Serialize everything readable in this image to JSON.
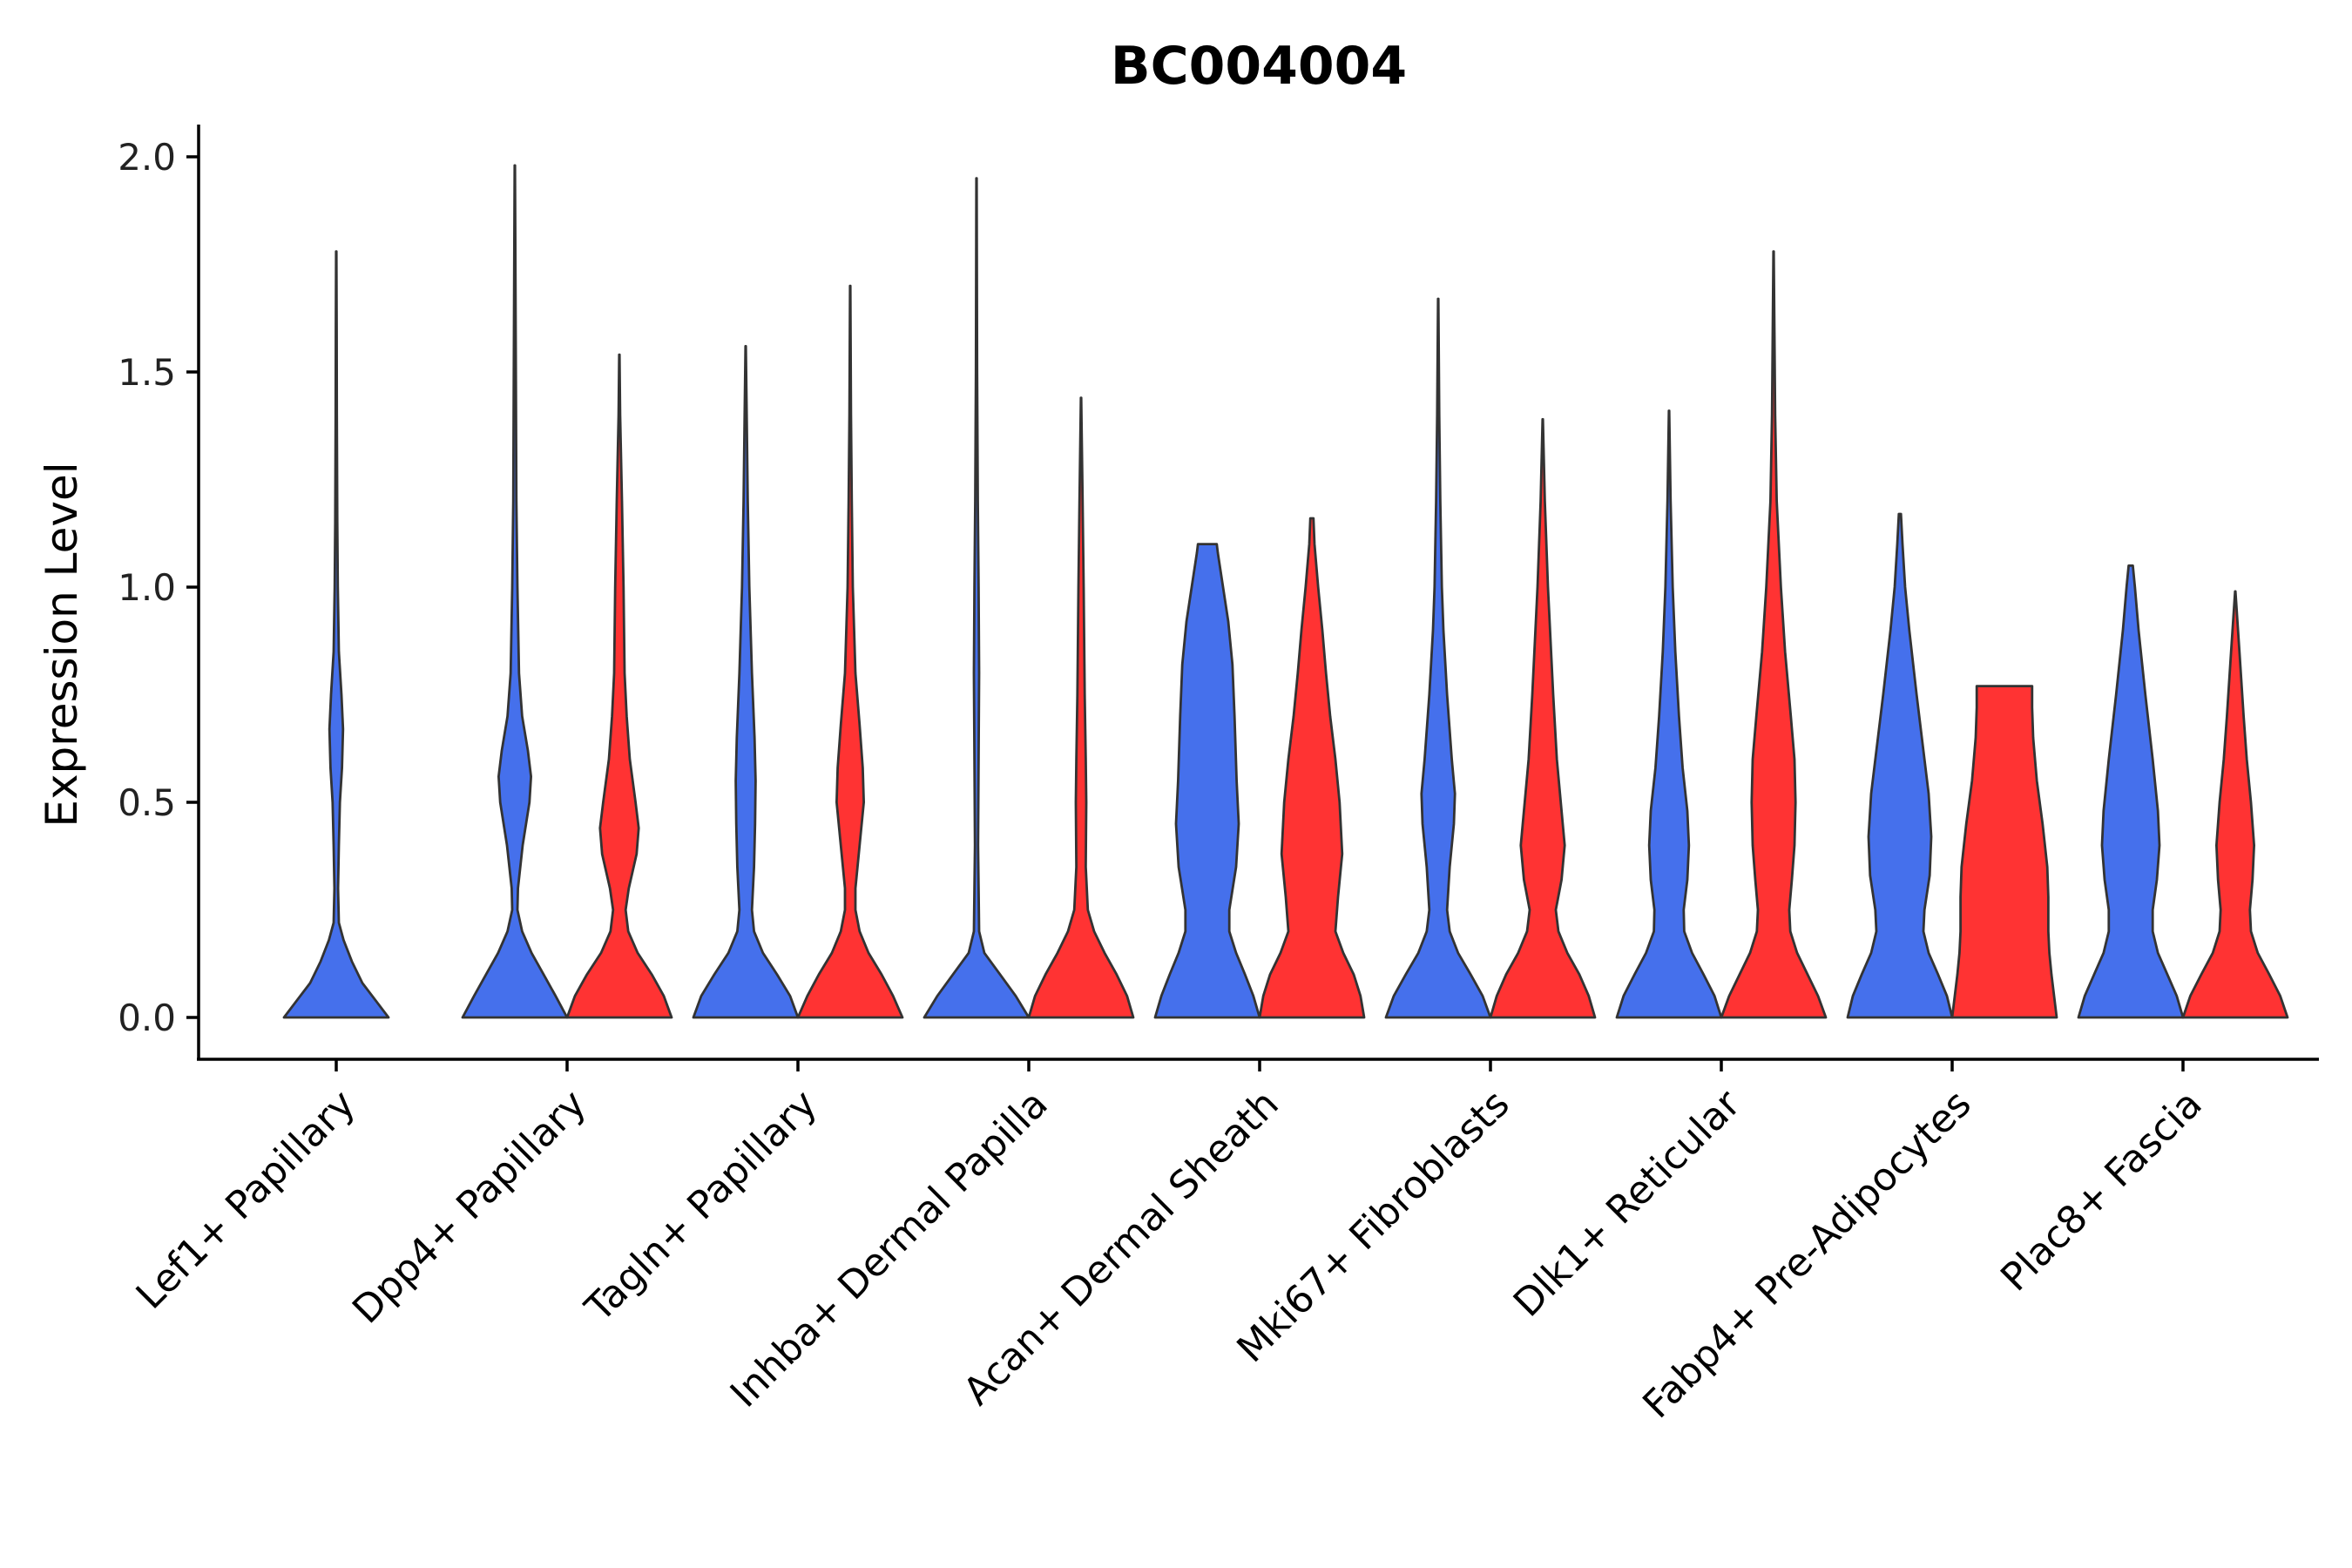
{
  "chart_data": {
    "type": "violin",
    "title": "BC004004",
    "xlabel": "",
    "ylabel": "Expression Level",
    "ylim": [
      -0.1,
      2.08
    ],
    "yticks": [
      "0.0",
      "0.5",
      "1.0",
      "1.5",
      "2.0"
    ],
    "grid": false,
    "legend": "none",
    "series": [
      {
        "name": "group-blue",
        "color": "#4570EC"
      },
      {
        "name": "group-red",
        "color": "#FF3333"
      }
    ],
    "categories": [
      "Lef1+ Papillary",
      "Dpp4+ Papillary",
      "Tagln+ Papillary",
      "Inhba+ Dermal Papilla",
      "Acan+ Dermal Sheath",
      "Mki67+ Fibroblasts",
      "Dlk1+ Reticular",
      "Fabp4+ Pre-Adipocytes",
      "Plac8+ Fascia"
    ],
    "violins": [
      {
        "category": "Lef1+ Papillary",
        "group": "blue",
        "max": 1.78,
        "profile": [
          [
            0.0,
            1.0
          ],
          [
            0.04,
            0.75
          ],
          [
            0.08,
            0.5
          ],
          [
            0.13,
            0.3
          ],
          [
            0.18,
            0.14
          ],
          [
            0.22,
            0.05
          ],
          [
            0.3,
            0.035
          ],
          [
            0.4,
            0.05
          ],
          [
            0.5,
            0.07
          ],
          [
            0.58,
            0.11
          ],
          [
            0.67,
            0.13
          ],
          [
            0.75,
            0.1
          ],
          [
            0.85,
            0.05
          ],
          [
            1.0,
            0.03
          ],
          [
            1.15,
            0.02
          ],
          [
            1.4,
            0.012
          ],
          [
            1.6,
            0.008
          ],
          [
            1.78,
            0.004
          ]
        ]
      },
      {
        "category": "Dpp4+ Papillary",
        "group": "blue",
        "max": 1.98,
        "profile": [
          [
            0.0,
            1.0
          ],
          [
            0.05,
            0.78
          ],
          [
            0.1,
            0.55
          ],
          [
            0.15,
            0.32
          ],
          [
            0.2,
            0.14
          ],
          [
            0.25,
            0.05
          ],
          [
            0.3,
            0.06
          ],
          [
            0.4,
            0.15
          ],
          [
            0.5,
            0.28
          ],
          [
            0.56,
            0.31
          ],
          [
            0.62,
            0.25
          ],
          [
            0.7,
            0.14
          ],
          [
            0.8,
            0.08
          ],
          [
            1.0,
            0.05
          ],
          [
            1.2,
            0.03
          ],
          [
            1.5,
            0.02
          ],
          [
            1.8,
            0.01
          ],
          [
            1.98,
            0.004
          ]
        ]
      },
      {
        "category": "Dpp4+ Papillary",
        "group": "red",
        "max": 1.54,
        "profile": [
          [
            0.0,
            1.0
          ],
          [
            0.05,
            0.85
          ],
          [
            0.1,
            0.62
          ],
          [
            0.15,
            0.35
          ],
          [
            0.2,
            0.17
          ],
          [
            0.25,
            0.12
          ],
          [
            0.3,
            0.18
          ],
          [
            0.38,
            0.33
          ],
          [
            0.44,
            0.37
          ],
          [
            0.5,
            0.31
          ],
          [
            0.6,
            0.2
          ],
          [
            0.7,
            0.14
          ],
          [
            0.8,
            0.1
          ],
          [
            1.0,
            0.08
          ],
          [
            1.2,
            0.05
          ],
          [
            1.4,
            0.015
          ],
          [
            1.54,
            0.004
          ]
        ]
      },
      {
        "category": "Tagln+ Papillary",
        "group": "blue",
        "max": 1.56,
        "profile": [
          [
            0.0,
            1.0
          ],
          [
            0.05,
            0.85
          ],
          [
            0.1,
            0.6
          ],
          [
            0.15,
            0.33
          ],
          [
            0.2,
            0.16
          ],
          [
            0.25,
            0.12
          ],
          [
            0.35,
            0.16
          ],
          [
            0.45,
            0.18
          ],
          [
            0.55,
            0.19
          ],
          [
            0.65,
            0.17
          ],
          [
            0.8,
            0.12
          ],
          [
            1.0,
            0.07
          ],
          [
            1.2,
            0.04
          ],
          [
            1.4,
            0.02
          ],
          [
            1.56,
            0.004
          ]
        ]
      },
      {
        "category": "Tagln+ Papillary",
        "group": "red",
        "max": 1.7,
        "profile": [
          [
            0.0,
            1.0
          ],
          [
            0.05,
            0.82
          ],
          [
            0.1,
            0.6
          ],
          [
            0.15,
            0.35
          ],
          [
            0.2,
            0.18
          ],
          [
            0.25,
            0.1
          ],
          [
            0.3,
            0.1
          ],
          [
            0.4,
            0.18
          ],
          [
            0.5,
            0.26
          ],
          [
            0.58,
            0.24
          ],
          [
            0.68,
            0.18
          ],
          [
            0.8,
            0.1
          ],
          [
            1.0,
            0.05
          ],
          [
            1.2,
            0.03
          ],
          [
            1.4,
            0.015
          ],
          [
            1.7,
            0.004
          ]
        ]
      },
      {
        "category": "Inhba+ Dermal Papilla",
        "group": "blue",
        "max": 1.95,
        "profile": [
          [
            0.0,
            1.0
          ],
          [
            0.05,
            0.75
          ],
          [
            0.1,
            0.45
          ],
          [
            0.15,
            0.15
          ],
          [
            0.2,
            0.05
          ],
          [
            0.4,
            0.03
          ],
          [
            0.6,
            0.04
          ],
          [
            0.8,
            0.05
          ],
          [
            1.0,
            0.04
          ],
          [
            1.2,
            0.025
          ],
          [
            1.5,
            0.012
          ],
          [
            1.95,
            0.004
          ]
        ]
      },
      {
        "category": "Inhba+ Dermal Papilla",
        "group": "red",
        "max": 1.44,
        "profile": [
          [
            0.0,
            1.0
          ],
          [
            0.05,
            0.88
          ],
          [
            0.1,
            0.68
          ],
          [
            0.15,
            0.45
          ],
          [
            0.2,
            0.25
          ],
          [
            0.25,
            0.13
          ],
          [
            0.35,
            0.09
          ],
          [
            0.5,
            0.1
          ],
          [
            0.6,
            0.09
          ],
          [
            0.75,
            0.07
          ],
          [
            1.0,
            0.05
          ],
          [
            1.2,
            0.03
          ],
          [
            1.44,
            0.004
          ]
        ]
      },
      {
        "category": "Acan+ Dermal Sheath",
        "group": "blue",
        "max": 1.1,
        "profile": [
          [
            0.0,
            1.0
          ],
          [
            0.05,
            0.88
          ],
          [
            0.1,
            0.72
          ],
          [
            0.15,
            0.55
          ],
          [
            0.2,
            0.42
          ],
          [
            0.25,
            0.42
          ],
          [
            0.35,
            0.55
          ],
          [
            0.45,
            0.6
          ],
          [
            0.55,
            0.56
          ],
          [
            0.7,
            0.52
          ],
          [
            0.82,
            0.48
          ],
          [
            0.92,
            0.4
          ],
          [
            1.0,
            0.3
          ],
          [
            1.08,
            0.2
          ],
          [
            1.1,
            0.18
          ]
        ]
      },
      {
        "category": "Acan+ Dermal Sheath",
        "group": "red",
        "max": 1.16,
        "profile": [
          [
            0.0,
            1.0
          ],
          [
            0.05,
            0.93
          ],
          [
            0.1,
            0.8
          ],
          [
            0.15,
            0.6
          ],
          [
            0.2,
            0.45
          ],
          [
            0.28,
            0.5
          ],
          [
            0.38,
            0.58
          ],
          [
            0.5,
            0.53
          ],
          [
            0.6,
            0.45
          ],
          [
            0.7,
            0.35
          ],
          [
            0.8,
            0.27
          ],
          [
            0.9,
            0.2
          ],
          [
            1.0,
            0.12
          ],
          [
            1.1,
            0.05
          ],
          [
            1.16,
            0.03
          ]
        ]
      },
      {
        "category": "Mki67+ Fibroblasts",
        "group": "blue",
        "max": 1.67,
        "profile": [
          [
            0.0,
            1.0
          ],
          [
            0.05,
            0.85
          ],
          [
            0.1,
            0.62
          ],
          [
            0.15,
            0.38
          ],
          [
            0.2,
            0.22
          ],
          [
            0.25,
            0.17
          ],
          [
            0.35,
            0.22
          ],
          [
            0.45,
            0.3
          ],
          [
            0.52,
            0.32
          ],
          [
            0.6,
            0.26
          ],
          [
            0.75,
            0.17
          ],
          [
            0.9,
            0.1
          ],
          [
            1.0,
            0.07
          ],
          [
            1.2,
            0.04
          ],
          [
            1.4,
            0.02
          ],
          [
            1.67,
            0.004
          ]
        ]
      },
      {
        "category": "Mki67+ Fibroblasts",
        "group": "red",
        "max": 1.39,
        "profile": [
          [
            0.0,
            1.0
          ],
          [
            0.05,
            0.88
          ],
          [
            0.1,
            0.7
          ],
          [
            0.15,
            0.47
          ],
          [
            0.2,
            0.3
          ],
          [
            0.25,
            0.25
          ],
          [
            0.32,
            0.36
          ],
          [
            0.4,
            0.42
          ],
          [
            0.48,
            0.36
          ],
          [
            0.6,
            0.27
          ],
          [
            0.75,
            0.2
          ],
          [
            0.9,
            0.14
          ],
          [
            1.0,
            0.1
          ],
          [
            1.2,
            0.04
          ],
          [
            1.39,
            0.004
          ]
        ]
      },
      {
        "category": "Dlk1+ Reticular",
        "group": "blue",
        "max": 1.41,
        "profile": [
          [
            0.0,
            1.0
          ],
          [
            0.05,
            0.87
          ],
          [
            0.1,
            0.66
          ],
          [
            0.15,
            0.44
          ],
          [
            0.2,
            0.29
          ],
          [
            0.25,
            0.28
          ],
          [
            0.32,
            0.35
          ],
          [
            0.4,
            0.38
          ],
          [
            0.48,
            0.35
          ],
          [
            0.58,
            0.26
          ],
          [
            0.7,
            0.19
          ],
          [
            0.85,
            0.12
          ],
          [
            1.0,
            0.07
          ],
          [
            1.2,
            0.03
          ],
          [
            1.41,
            0.004
          ]
        ]
      },
      {
        "category": "Dlk1+ Reticular",
        "group": "red",
        "max": 1.78,
        "profile": [
          [
            0.0,
            1.0
          ],
          [
            0.05,
            0.85
          ],
          [
            0.1,
            0.65
          ],
          [
            0.15,
            0.45
          ],
          [
            0.2,
            0.32
          ],
          [
            0.25,
            0.3
          ],
          [
            0.32,
            0.35
          ],
          [
            0.4,
            0.4
          ],
          [
            0.5,
            0.42
          ],
          [
            0.6,
            0.4
          ],
          [
            0.7,
            0.33
          ],
          [
            0.85,
            0.22
          ],
          [
            1.0,
            0.14
          ],
          [
            1.2,
            0.06
          ],
          [
            1.4,
            0.03
          ],
          [
            1.78,
            0.004
          ]
        ]
      },
      {
        "category": "Fabp4+ Pre-Adipocytes",
        "group": "blue",
        "max": 1.17,
        "profile": [
          [
            0.0,
            1.0
          ],
          [
            0.05,
            0.9
          ],
          [
            0.1,
            0.73
          ],
          [
            0.15,
            0.55
          ],
          [
            0.2,
            0.45
          ],
          [
            0.25,
            0.47
          ],
          [
            0.33,
            0.57
          ],
          [
            0.42,
            0.6
          ],
          [
            0.52,
            0.55
          ],
          [
            0.62,
            0.45
          ],
          [
            0.75,
            0.32
          ],
          [
            0.9,
            0.18
          ],
          [
            1.0,
            0.1
          ],
          [
            1.1,
            0.05
          ],
          [
            1.17,
            0.02
          ]
        ]
      },
      {
        "category": "Fabp4+ Pre-Adipocytes",
        "group": "red",
        "max": 0.77,
        "profile": [
          [
            0.0,
            1.0
          ],
          [
            0.05,
            0.95
          ],
          [
            0.1,
            0.9
          ],
          [
            0.15,
            0.86
          ],
          [
            0.2,
            0.84
          ],
          [
            0.28,
            0.84
          ],
          [
            0.35,
            0.82
          ],
          [
            0.45,
            0.73
          ],
          [
            0.55,
            0.62
          ],
          [
            0.65,
            0.55
          ],
          [
            0.72,
            0.53
          ],
          [
            0.77,
            0.53
          ]
        ]
      },
      {
        "category": "Plac8+ Fascia",
        "group": "blue",
        "max": 1.05,
        "profile": [
          [
            0.0,
            1.0
          ],
          [
            0.05,
            0.88
          ],
          [
            0.1,
            0.7
          ],
          [
            0.15,
            0.52
          ],
          [
            0.2,
            0.42
          ],
          [
            0.25,
            0.42
          ],
          [
            0.32,
            0.5
          ],
          [
            0.4,
            0.55
          ],
          [
            0.48,
            0.52
          ],
          [
            0.6,
            0.42
          ],
          [
            0.75,
            0.28
          ],
          [
            0.9,
            0.15
          ],
          [
            1.0,
            0.08
          ],
          [
            1.05,
            0.04
          ]
        ]
      },
      {
        "category": "Plac8+ Fascia",
        "group": "red",
        "max": 0.99,
        "profile": [
          [
            0.0,
            1.0
          ],
          [
            0.05,
            0.86
          ],
          [
            0.1,
            0.65
          ],
          [
            0.15,
            0.43
          ],
          [
            0.2,
            0.3
          ],
          [
            0.25,
            0.28
          ],
          [
            0.32,
            0.33
          ],
          [
            0.4,
            0.36
          ],
          [
            0.5,
            0.3
          ],
          [
            0.6,
            0.22
          ],
          [
            0.7,
            0.16
          ],
          [
            0.85,
            0.08
          ],
          [
            0.99,
            0.004
          ]
        ]
      }
    ]
  }
}
